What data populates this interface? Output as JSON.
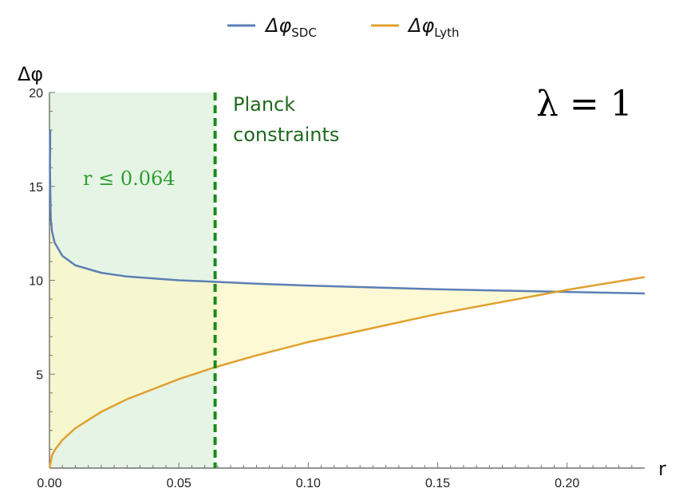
{
  "legend": {
    "position": "top-center",
    "items": [
      {
        "symbol": "Δφ",
        "subscript": "SDC",
        "color": "#5b7fb5"
      },
      {
        "symbol": "Δφ",
        "subscript": "Lyth",
        "color": "#e0a030"
      }
    ]
  },
  "annotations": {
    "planck_line1": "Planck",
    "planck_line2": "constraints",
    "r_constraint": "r ≤ 0.064",
    "lambda": "λ = 1"
  },
  "chart_data": {
    "type": "line",
    "xlabel": "r",
    "ylabel": "Δφ",
    "xlim": [
      0,
      0.23
    ],
    "ylim": [
      0,
      20
    ],
    "xticks": [
      "0.00",
      "0.05",
      "0.10",
      "0.15",
      "0.20"
    ],
    "yticks": [
      "5",
      "10",
      "15",
      "20"
    ],
    "grid": false,
    "series": [
      {
        "name": "Δφ_SDC",
        "color": "#5b7fb5",
        "x": [
          0.0002,
          0.0005,
          0.001,
          0.002,
          0.005,
          0.01,
          0.02,
          0.03,
          0.05,
          0.064,
          0.08,
          0.1,
          0.15,
          0.2,
          0.23
        ],
        "values": [
          16.0,
          13.3,
          12.6,
          12.0,
          11.3,
          10.8,
          10.4,
          10.2,
          10.0,
          9.92,
          9.82,
          9.72,
          9.52,
          9.38,
          9.3
        ]
      },
      {
        "name": "Δφ_Lyth",
        "color": "#e0a030",
        "x": [
          0.0,
          0.001,
          0.002,
          0.005,
          0.01,
          0.02,
          0.03,
          0.05,
          0.064,
          0.08,
          0.1,
          0.15,
          0.2,
          0.23
        ],
        "values": [
          0.0,
          0.67,
          0.95,
          1.5,
          2.12,
          3.0,
          3.67,
          4.74,
          5.37,
          6.0,
          6.71,
          8.21,
          9.49,
          10.17
        ]
      }
    ],
    "shaded_region": {
      "from": 0,
      "to": 0.064,
      "color": "#d6ecd6"
    },
    "fill_between_color": "#fbf7c9",
    "constraint_line": {
      "x": 0.064,
      "color": "#1a8a1a",
      "style": "dashed"
    }
  }
}
